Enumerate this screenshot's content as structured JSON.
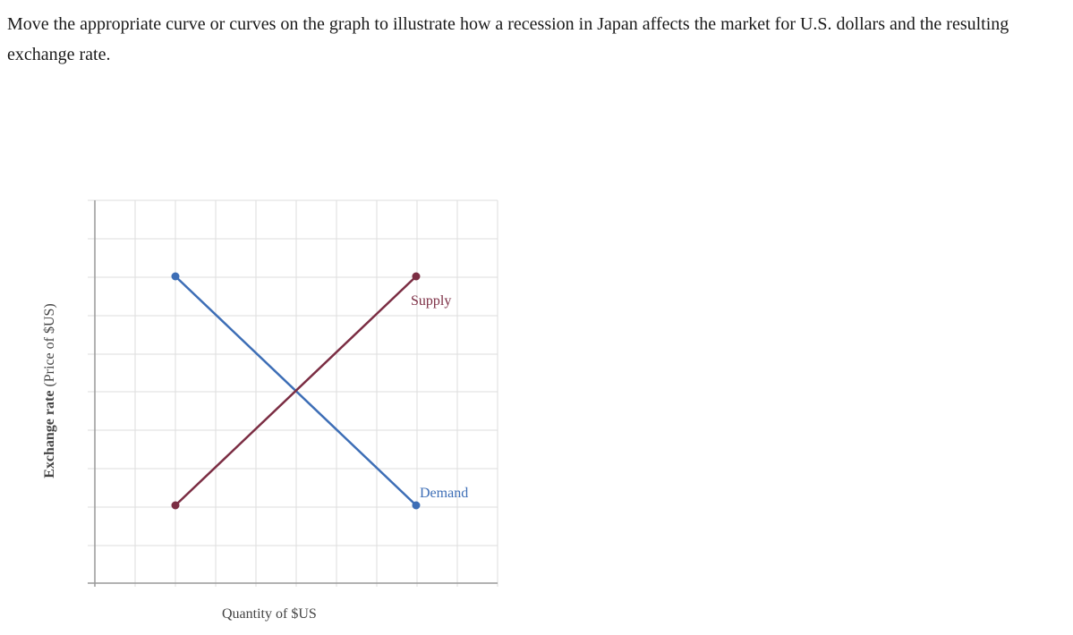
{
  "question": {
    "text": "Move the appropriate curve or curves on the graph to illustrate how a recession in Japan affects the market for U.S. dollars and the resulting exchange rate."
  },
  "graph": {
    "y_axis_label_bold": "Exchange rate",
    "y_axis_label_rest": " (Price of $US)",
    "x_axis_label": "Quantity of $US",
    "curves": {
      "supply": {
        "label": "Supply",
        "color": "#7b2d43"
      },
      "demand": {
        "label": "Demand",
        "color": "#3d6eb6"
      }
    },
    "grid_color": "#dddddd",
    "axis_color": "#999999"
  }
}
